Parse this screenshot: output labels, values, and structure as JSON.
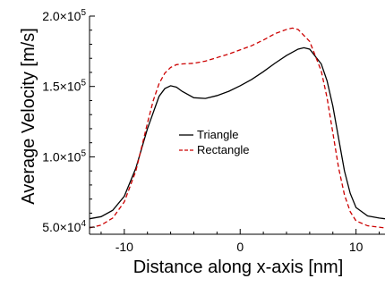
{
  "chart_data": {
    "type": "line",
    "xlabel": "Distance along x-axis [nm]",
    "ylabel": "Average Velocity [m/s]",
    "xlim": [
      -13,
      12.5
    ],
    "ylim": [
      45000,
      200000
    ],
    "x_ticks": [
      {
        "value": -10,
        "label": "-10"
      },
      {
        "value": 0,
        "label": "0"
      },
      {
        "value": 10,
        "label": "10"
      }
    ],
    "y_ticks": [
      {
        "value": 50000,
        "mant": "5.0×10",
        "exp": "4"
      },
      {
        "value": 100000,
        "mant": "1.0×10",
        "exp": "5"
      },
      {
        "value": 150000,
        "mant": "1.5×10",
        "exp": "5"
      },
      {
        "value": 200000,
        "mant": "2.0×10",
        "exp": "5"
      }
    ],
    "legend_position": "center-left",
    "grid": false,
    "series": [
      {
        "name": "Triangle",
        "color": "#000000",
        "dash": "solid",
        "x": [
          -13,
          -12,
          -11,
          -10,
          -9,
          -8,
          -7,
          -6.5,
          -6,
          -5.5,
          -5,
          -4,
          -3,
          -2,
          -1,
          0,
          1,
          2,
          3,
          4,
          5,
          5.5,
          6,
          7,
          7.5,
          8,
          8.5,
          9,
          9.5,
          10,
          11,
          12,
          12.5
        ],
        "y": [
          56000,
          57500,
          62000,
          72000,
          92000,
          120000,
          143000,
          148500,
          150500,
          149500,
          146500,
          142000,
          141500,
          143500,
          146500,
          150500,
          155000,
          160500,
          166500,
          172000,
          176500,
          177500,
          176500,
          166000,
          154000,
          136000,
          113000,
          90000,
          74000,
          64000,
          58000,
          56500,
          56000
        ]
      },
      {
        "name": "Rectangle",
        "color": "#cc0000",
        "dash": "dashed",
        "x": [
          -13,
          -12,
          -11,
          -10,
          -9,
          -8,
          -7.5,
          -7,
          -6.5,
          -6,
          -5.5,
          -5,
          -4,
          -3,
          -2,
          -1,
          0,
          1,
          2,
          3,
          4,
          4.5,
          5,
          6,
          7,
          7.5,
          8,
          8.5,
          9,
          9.5,
          10,
          11,
          12,
          12.5
        ],
        "y": [
          49500,
          51500,
          56500,
          68000,
          90000,
          124000,
          140000,
          152000,
          159500,
          163500,
          165500,
          166000,
          166500,
          168000,
          170500,
          173000,
          176000,
          179000,
          183000,
          187500,
          190500,
          191500,
          190500,
          182000,
          161000,
          142000,
          117000,
          92000,
          73000,
          61000,
          54500,
          51000,
          50000,
          49500
        ]
      }
    ]
  }
}
